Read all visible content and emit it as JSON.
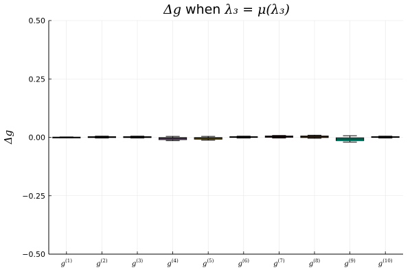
{
  "chart_data": {
    "type": "box",
    "title": {
      "math_pre": "Δg",
      "text": " when ",
      "math_post": "λ₃ = μ(λ₃)"
    },
    "ylabel": "Δg",
    "xlabel": "",
    "ylim": [
      -0.5,
      0.5
    ],
    "yticks": [
      -0.5,
      -0.25,
      0.0,
      0.25,
      0.5
    ],
    "ytick_labels": [
      "−0.50",
      "−0.25",
      "0.00",
      "0.25",
      "0.50"
    ],
    "grid": true,
    "legend": "none",
    "categories": [
      {
        "base": "g",
        "sup": "(1)"
      },
      {
        "base": "g",
        "sup": "(2)"
      },
      {
        "base": "g",
        "sup": "(3)"
      },
      {
        "base": "g",
        "sup": "(4)"
      },
      {
        "base": "g",
        "sup": "(5)"
      },
      {
        "base": "g",
        "sup": "(6)"
      },
      {
        "base": "g",
        "sup": "(7)"
      },
      {
        "base": "g",
        "sup": "(8)"
      },
      {
        "base": "g",
        "sup": "(9)"
      },
      {
        "base": "g",
        "sup": "(10)"
      }
    ],
    "boxes": [
      {
        "min": -0.002,
        "q1": -0.001,
        "median": 0.0,
        "q3": 0.001,
        "max": 0.002,
        "color": "#009AFA"
      },
      {
        "min": -0.003,
        "q1": -0.001,
        "median": 0.001,
        "q3": 0.003,
        "max": 0.005,
        "color": "#E36F47"
      },
      {
        "min": -0.003,
        "q1": -0.001,
        "median": 0.001,
        "q3": 0.003,
        "max": 0.005,
        "color": "#3EA44E"
      },
      {
        "min": -0.014,
        "q1": -0.01,
        "median": -0.005,
        "q3": -0.001,
        "max": 0.004,
        "color": "#C371D2"
      },
      {
        "min": -0.012,
        "q1": -0.008,
        "median": -0.004,
        "q3": -0.001,
        "max": 0.004,
        "color": "#AC8E18"
      },
      {
        "min": -0.003,
        "q1": 0.0,
        "median": 0.001,
        "q3": 0.003,
        "max": 0.005,
        "color": "#00AAAE"
      },
      {
        "min": -0.003,
        "q1": 0.0,
        "median": 0.003,
        "q3": 0.006,
        "max": 0.008,
        "color": "#ED5E93"
      },
      {
        "min": -0.004,
        "q1": -0.001,
        "median": 0.002,
        "q3": 0.006,
        "max": 0.009,
        "color": "#C68225"
      },
      {
        "min": -0.02,
        "q1": -0.014,
        "median": -0.008,
        "q3": -0.002,
        "max": 0.007,
        "color": "#00A98D"
      },
      {
        "min": -0.003,
        "q1": 0.0,
        "median": 0.001,
        "q3": 0.003,
        "max": 0.005,
        "color": "#8E971E"
      }
    ]
  }
}
